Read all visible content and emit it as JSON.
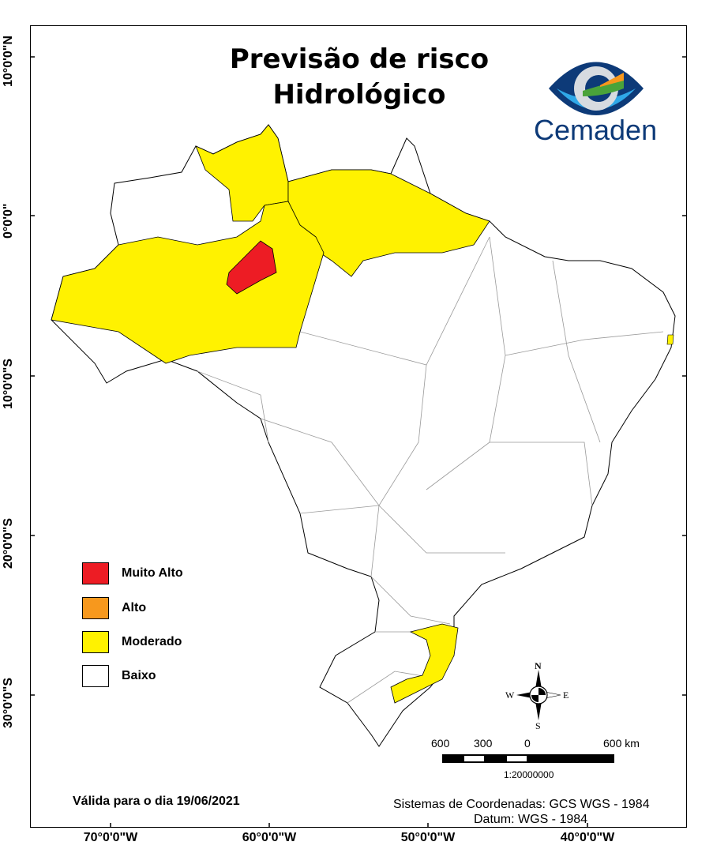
{
  "title_line1": "Previsão de risco",
  "title_line2": "Hidrológico",
  "logo_text": "Cemaden",
  "latitude_labels": [
    "10°0'0\"N",
    "0°0'0\"",
    "10°0'0\"S",
    "20°0'0\"S",
    "30°0'0\"S"
  ],
  "longitude_labels": [
    "70°0'0\"W",
    "60°0'0\"W",
    "50°0'0\"W",
    "40°0'0\"W"
  ],
  "legend": [
    {
      "label": "Muito Alto",
      "color": "#ED1C24"
    },
    {
      "label": "Alto",
      "color": "#F7981D"
    },
    {
      "label": "Moderado",
      "color": "#FFF200"
    },
    {
      "label": "Baixo",
      "color": "#FFFFFF"
    }
  ],
  "compass": {
    "n": "N",
    "s": "S",
    "e": "E",
    "w": "W"
  },
  "scale": {
    "labels": [
      "600",
      "300",
      "0",
      "600 km"
    ],
    "ratio": "1:20000000"
  },
  "valid_date": "Válida para o dia 19/06/2021",
  "coord_system": "Sistemas de Coordenadas: GCS WGS - 1984",
  "datum": "Datum: WGS - 1984"
}
